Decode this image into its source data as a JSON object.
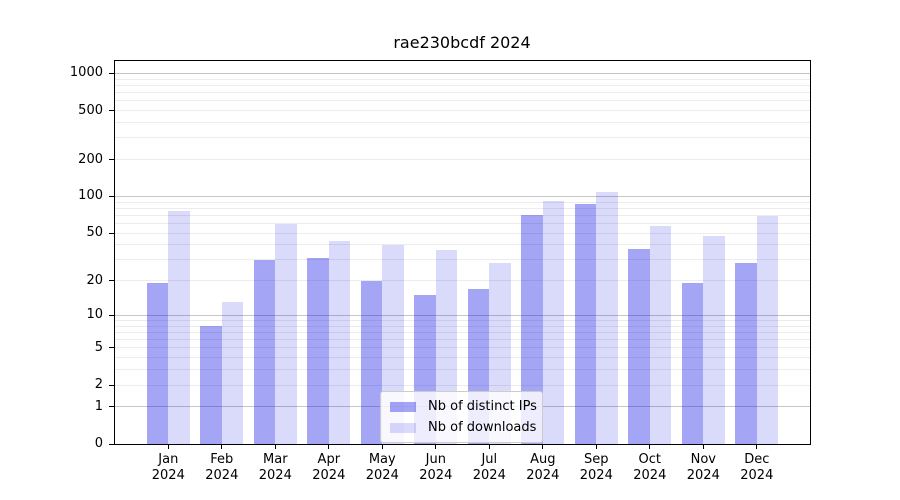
{
  "chart_data": {
    "type": "bar",
    "title": "rae230bcdf 2024",
    "x_categories": [
      "Jan",
      "Feb",
      "Mar",
      "Apr",
      "May",
      "Jun",
      "Jul",
      "Aug",
      "Sep",
      "Oct",
      "Nov",
      "Dec"
    ],
    "x_sublabel": "2024",
    "y_ticks": [
      0,
      1,
      2,
      5,
      10,
      20,
      50,
      100,
      200,
      500,
      1000
    ],
    "y_scale": "log10(1+x)",
    "y_axis_range": [
      0,
      1260
    ],
    "grid": {
      "major_color": "#c6c6c6",
      "minor_color": "#ececec",
      "grid_on": true
    },
    "series": [
      {
        "name": "Nb of distinct IPs",
        "color": "rgba(10,10,230,0.37)",
        "values": [
          19,
          8,
          30,
          31,
          20,
          15,
          17,
          70,
          87,
          37,
          19,
          28
        ]
      },
      {
        "name": "Nb of downloads",
        "color": "rgba(10,10,230,0.15)",
        "values": [
          76,
          13,
          60,
          43,
          40,
          36,
          28,
          92,
          108,
          57,
          47,
          69
        ]
      }
    ],
    "legend": {
      "position": "inside-bottom-center"
    }
  }
}
